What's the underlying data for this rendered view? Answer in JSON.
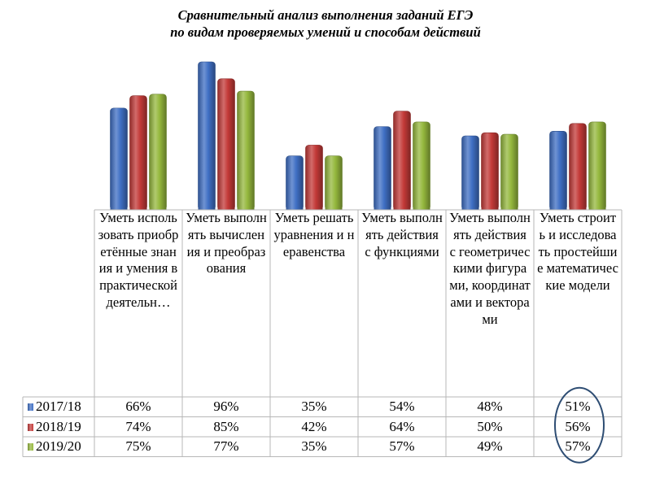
{
  "chart_data": {
    "type": "bar",
    "title": [
      "Сравнительный анализ выполнения заданий ЕГЭ",
      "по видам проверяемых умений и способам действий"
    ],
    "categories": [
      "Уметь использовать приобретённые знания и умения в практической деятельн…",
      "Уметь выполнять вычисления и преобразования",
      "Уметь решать уравнения и неравенства",
      "Уметь выполнять действия с функциями",
      "Уметь выполнять действия с геометрическими фигурами, координатами и векторами",
      "Уметь строить и исследовать простейшие математические модели"
    ],
    "series": [
      {
        "name": "2017/18",
        "values": [
          66,
          96,
          35,
          54,
          48,
          51
        ],
        "color": "#3f6fc4",
        "labels": [
          "66%",
          "96%",
          "35%",
          "54%",
          "48%",
          "51%"
        ]
      },
      {
        "name": "2018/19",
        "values": [
          74,
          85,
          42,
          64,
          50,
          56
        ],
        "color": "#c33a38",
        "labels": [
          "74%",
          "85%",
          "42%",
          "64%",
          "50%",
          "56%"
        ]
      },
      {
        "name": "2019/20",
        "values": [
          75,
          77,
          35,
          57,
          49,
          57
        ],
        "color": "#95b83d",
        "labels": [
          "75%",
          "77%",
          "35%",
          "57%",
          "49%",
          "57%"
        ]
      }
    ],
    "ylim": [
      0,
      100
    ],
    "grid": false,
    "legend": "data-table",
    "highlight": {
      "type": "ellipse",
      "category_index": 5
    }
  }
}
